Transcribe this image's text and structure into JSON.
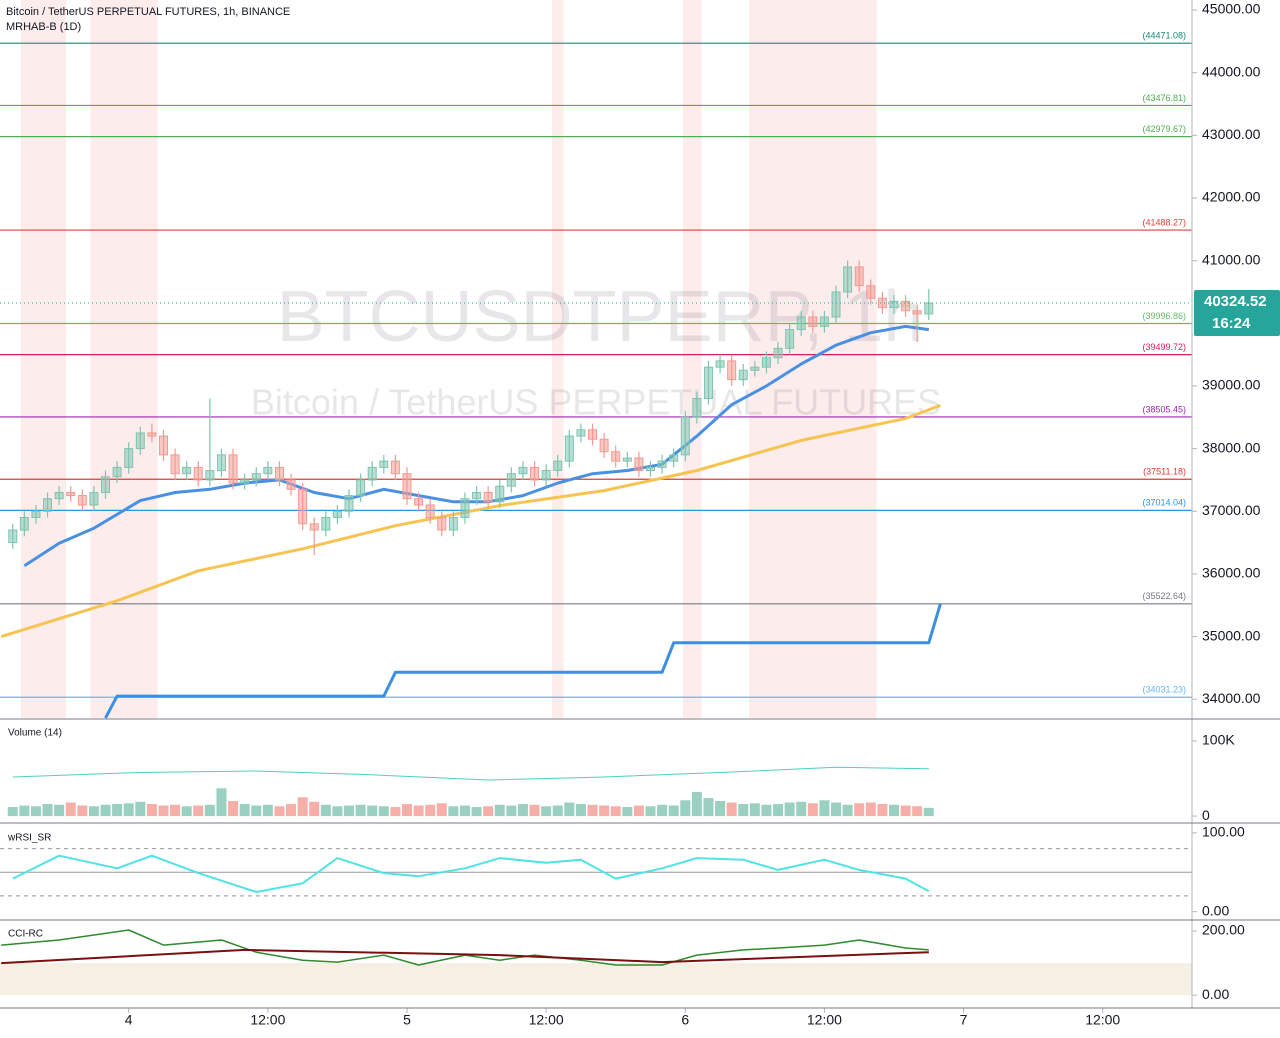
{
  "chart_data": [
    {
      "type": "candlestick",
      "title": "Bitcoin / TetherUS PERPETUAL FUTURES, 1h, BINANCE",
      "indicator": "MRHAB-B (1D)",
      "watermark": "BTCUSDTPERP, 1h",
      "watermark_subtitle": "Bitcoin / TetherUS PERPETUAL FUTURES",
      "price_label": {
        "value": 40324.52,
        "label": "40324.52"
      },
      "countdown": "16:24",
      "xlim": [
        12.9,
        115.7
      ],
      "xticks": [
        {
          "value": 24,
          "label": "4"
        },
        {
          "value": 36,
          "label": "12:00"
        },
        {
          "value": 48,
          "label": "5"
        },
        {
          "value": 60,
          "label": "12:00"
        },
        {
          "value": 72,
          "label": "6"
        },
        {
          "value": 84,
          "label": "12:00"
        },
        {
          "value": 96,
          "label": "7"
        },
        {
          "value": 108,
          "label": "12:00"
        }
      ],
      "ylim": [
        33700,
        45160
      ],
      "yticks": [
        {
          "value": 45000,
          "label": "45000.00"
        },
        {
          "value": 44000,
          "label": "44000.00"
        },
        {
          "value": 43000,
          "label": "43000.00"
        },
        {
          "value": 42000,
          "label": "42000.00"
        },
        {
          "value": 41000,
          "label": "41000.00"
        },
        {
          "value": 39000,
          "label": "39000.00"
        },
        {
          "value": 38000,
          "label": "38000.00"
        },
        {
          "value": 37000,
          "label": "37000.00"
        },
        {
          "value": 36000,
          "label": "36000.00"
        },
        {
          "value": 35000,
          "label": "35000.00"
        },
        {
          "value": 34000,
          "label": "34000.00"
        }
      ],
      "up_color": "#7fc4b0",
      "down_color": "#f29a92",
      "x": [
        14,
        15,
        16,
        17,
        18,
        19,
        20,
        21,
        22,
        23,
        24,
        25,
        26,
        27,
        28,
        29,
        30,
        31,
        32,
        33,
        34,
        35,
        36,
        37,
        38,
        39,
        40,
        41,
        42,
        43,
        44,
        45,
        46,
        47,
        48,
        49,
        50,
        51,
        52,
        53,
        54,
        55,
        56,
        57,
        58,
        59,
        60,
        61,
        62,
        63,
        64,
        65,
        66,
        67,
        68,
        69,
        70,
        71,
        72,
        73,
        74,
        75,
        76,
        77,
        78,
        79,
        80,
        81,
        82,
        83,
        84,
        85,
        86,
        87,
        88,
        89,
        90,
        91,
        92,
        93
      ],
      "open": [
        36500,
        36700,
        36900,
        37000,
        37200,
        37300,
        37250,
        37100,
        37300,
        37550,
        37700,
        38000,
        38250,
        38200,
        37900,
        37600,
        37700,
        37500,
        37650,
        37900,
        37450,
        37500,
        37600,
        37700,
        37500,
        37350,
        36800,
        36700,
        36900,
        37000,
        37250,
        37500,
        37700,
        37800,
        37600,
        37200,
        37100,
        36900,
        36700,
        36900,
        37200,
        37300,
        37150,
        37400,
        37600,
        37700,
        37500,
        37650,
        37800,
        38200,
        38300,
        38150,
        37950,
        37800,
        37850,
        37650,
        37700,
        37800,
        37900,
        38500,
        38800,
        39300,
        39400,
        39100,
        39250,
        39300,
        39450,
        39600,
        39900,
        40100,
        39950,
        40100,
        40500,
        40900,
        40600,
        40400,
        40250,
        40350,
        40200,
        40150
      ],
      "high": [
        36800,
        37000,
        37100,
        37300,
        37400,
        37400,
        37350,
        37400,
        37650,
        37800,
        38100,
        38350,
        38400,
        38300,
        38000,
        37800,
        37800,
        38800,
        38000,
        38000,
        37600,
        37700,
        37800,
        37800,
        37600,
        37450,
        36900,
        37000,
        37100,
        37350,
        37600,
        37800,
        37900,
        37900,
        37700,
        37300,
        37200,
        37000,
        37000,
        37300,
        37400,
        37400,
        37500,
        37700,
        37800,
        37800,
        37750,
        37900,
        38300,
        38400,
        38400,
        38250,
        38050,
        37950,
        37950,
        37800,
        37900,
        38000,
        38600,
        38900,
        39400,
        39500,
        39500,
        39350,
        39400,
        39550,
        39700,
        40000,
        40200,
        40200,
        40200,
        40600,
        41000,
        41000,
        40700,
        40500,
        40450,
        40450,
        40300,
        40550
      ],
      "low": [
        36400,
        36600,
        36800,
        36900,
        37100,
        37150,
        37000,
        37000,
        37200,
        37450,
        37600,
        37900,
        38100,
        37800,
        37500,
        37500,
        37400,
        37400,
        37550,
        37350,
        37350,
        37400,
        37500,
        37400,
        37250,
        36700,
        36300,
        36600,
        36800,
        36900,
        37150,
        37400,
        37600,
        37500,
        37100,
        37000,
        36800,
        36600,
        36600,
        36800,
        37100,
        37050,
        37050,
        37300,
        37500,
        37400,
        37400,
        37550,
        37700,
        38100,
        38050,
        37850,
        37700,
        37700,
        37550,
        37550,
        37600,
        37700,
        37800,
        38400,
        38700,
        39200,
        39000,
        39000,
        39150,
        39200,
        39350,
        39500,
        39800,
        39850,
        39850,
        40000,
        40400,
        40500,
        40300,
        40150,
        40150,
        40100,
        39700,
        40050
      ],
      "close": [
        36700,
        36900,
        37000,
        37200,
        37300,
        37250,
        37100,
        37300,
        37550,
        37700,
        38000,
        38250,
        38200,
        37900,
        37600,
        37700,
        37500,
        37650,
        37900,
        37450,
        37500,
        37600,
        37700,
        37500,
        37350,
        36800,
        36700,
        36900,
        37000,
        37250,
        37500,
        37700,
        37800,
        37600,
        37200,
        37100,
        36900,
        36700,
        36900,
        37200,
        37300,
        37150,
        37400,
        37600,
        37700,
        37500,
        37650,
        37800,
        38200,
        38300,
        38150,
        37950,
        37800,
        37850,
        37650,
        37700,
        37800,
        37900,
        38500,
        38800,
        39300,
        39400,
        39100,
        39250,
        39300,
        39450,
        39600,
        39900,
        40100,
        39950,
        40100,
        40500,
        40900,
        40600,
        40400,
        40250,
        40350,
        40200,
        40150,
        40324.52
      ],
      "levels": [
        {
          "value": 44471.08,
          "label": "(44471.08)",
          "color": "#1b8a7a"
        },
        {
          "value": 43476.81,
          "label": "(43476.81)",
          "color": "#4caf50"
        },
        {
          "value": 42979.67,
          "label": "(42979.67)",
          "color": "#4caf50"
        },
        {
          "value": 41488.27,
          "label": "(41488.27)",
          "color": "#e0403a"
        },
        {
          "value": 39996.86,
          "label": "(39996.86)",
          "color": "#66bb6a"
        },
        {
          "value": 39499.72,
          "label": "(39499.72)",
          "color": "#d81b60"
        },
        {
          "value": 38505.45,
          "label": "(38505.45)",
          "color": "#9c27b0"
        },
        {
          "value": 37511.18,
          "label": "(37511.18)",
          "color": "#e53935"
        },
        {
          "value": 37014.04,
          "label": "(37014.04)",
          "color": "#2196f3"
        },
        {
          "value": 35522.64,
          "label": "(35522.64)",
          "color": "#787b86"
        },
        {
          "value": 34031.23,
          "label": "(34031.23)",
          "color": "#64b5f6"
        }
      ],
      "highlight_ranges": [
        [
          14.7,
          18.6
        ],
        [
          20.7,
          26.5
        ],
        [
          60.5,
          61.5
        ],
        [
          71.8,
          73.4
        ],
        [
          77.5,
          88.5
        ]
      ],
      "highlight_color": "#fdecec",
      "series": [
        {
          "color": "#4a90e2",
          "width": 3,
          "x": [
            15,
            18,
            21,
            25,
            28,
            31,
            34,
            37,
            40,
            43,
            46,
            49,
            52,
            55,
            58,
            61,
            64,
            67,
            70,
            73,
            76,
            79,
            82,
            85,
            88,
            91,
            93
          ],
          "values": [
            36130,
            36490,
            36730,
            37170,
            37300,
            37350,
            37450,
            37500,
            37300,
            37200,
            37350,
            37250,
            37150,
            37150,
            37250,
            37450,
            37600,
            37650,
            37750,
            38200,
            38700,
            39000,
            39350,
            39650,
            39850,
            39950,
            39900
          ]
        },
        {
          "color": "#f6c453",
          "width": 3,
          "x": [
            13,
            23,
            30,
            39,
            47,
            56,
            65,
            73,
            82,
            91,
            94
          ],
          "values": [
            35000,
            35570,
            36050,
            36400,
            36770,
            37090,
            37330,
            37650,
            38130,
            38480,
            38690
          ]
        },
        {
          "color": "#3d8fe0",
          "width": 3,
          "x": [
            22,
            23,
            46,
            47,
            70,
            71,
            93,
            94
          ],
          "values": [
            33700,
            34050,
            34050,
            34430,
            34430,
            34900,
            34900,
            35522.64
          ]
        }
      ]
    },
    {
      "type": "bar",
      "label": "Volume (14)",
      "ylim": [
        -2600,
        128000
      ],
      "yticks": [
        {
          "value": 100000,
          "label": "100K"
        },
        0
      ],
      "x": [
        14,
        15,
        16,
        17,
        18,
        19,
        20,
        21,
        22,
        23,
        24,
        25,
        26,
        27,
        28,
        29,
        30,
        31,
        32,
        33,
        34,
        35,
        36,
        37,
        38,
        39,
        40,
        41,
        42,
        43,
        44,
        45,
        46,
        47,
        48,
        49,
        50,
        51,
        52,
        53,
        54,
        55,
        56,
        57,
        58,
        59,
        60,
        61,
        62,
        63,
        64,
        65,
        66,
        67,
        68,
        69,
        70,
        71,
        72,
        73,
        74,
        75,
        76,
        77,
        78,
        79,
        80,
        81,
        82,
        83,
        84,
        85,
        86,
        87,
        88,
        89,
        90,
        91,
        92,
        93
      ],
      "values": [
        12000,
        14000,
        13000,
        16000,
        15000,
        18000,
        14000,
        13000,
        15000,
        16000,
        17000,
        19000,
        16000,
        14000,
        15000,
        13000,
        14000,
        15000,
        37000,
        20000,
        16000,
        14000,
        15000,
        13000,
        16000,
        25000,
        19000,
        15000,
        13000,
        14000,
        15000,
        14000,
        13000,
        12000,
        16000,
        14000,
        15000,
        17000,
        13000,
        14000,
        12000,
        13000,
        15000,
        14000,
        16000,
        15000,
        13000,
        14000,
        18000,
        16000,
        15000,
        14000,
        13000,
        12000,
        14000,
        13000,
        15000,
        14000,
        21000,
        32000,
        24000,
        20000,
        18000,
        16000,
        17000,
        15000,
        16000,
        18000,
        19000,
        17000,
        21000,
        18000,
        15000,
        17000,
        18000,
        16000,
        15000,
        14000,
        13000,
        11000
      ],
      "series": [
        {
          "color": "#4dd0c0",
          "width": 1,
          "x": [
            14,
            25,
            35,
            45,
            55,
            65,
            75,
            85,
            93
          ],
          "values": [
            52000,
            58000,
            60000,
            55000,
            48000,
            52000,
            58000,
            65000,
            63000
          ]
        }
      ]
    },
    {
      "type": "line",
      "label": "wRSI_SR",
      "ylim": [
        -8,
        110
      ],
      "yticks": [
        {
          "value": 100,
          "label": "100.00"
        },
        {
          "value": 0,
          "label": "0.00"
        }
      ],
      "levels": [
        {
          "value": 80,
          "dashed": true
        },
        {
          "value": 50,
          "dashed": false
        },
        {
          "value": 20,
          "dashed": true
        }
      ],
      "series": [
        {
          "color": "#4fe3e3",
          "width": 2,
          "x": [
            14,
            18,
            23,
            26,
            30,
            35,
            39,
            42,
            46,
            49,
            53,
            56,
            60,
            63,
            66,
            70,
            73,
            77,
            80,
            84,
            87,
            91,
            93
          ],
          "values": [
            42,
            71,
            55,
            71,
            49,
            25,
            36,
            68,
            49,
            45,
            55,
            68,
            62,
            66,
            42,
            55,
            68,
            66,
            53,
            66,
            53,
            42,
            26
          ]
        }
      ]
    },
    {
      "type": "line",
      "label": "CCI-RC",
      "ylim": [
        -40,
        228
      ],
      "yticks": [
        {
          "value": 200,
          "label": "200.00"
        },
        {
          "value": 0,
          "label": "0.00"
        }
      ],
      "band": [
        0,
        100
      ],
      "series": [
        {
          "color": "#2e8b2e",
          "width": 1.5,
          "x": [
            13,
            18,
            24,
            27,
            32,
            35,
            39,
            42,
            46,
            49,
            53,
            56,
            59,
            63,
            66,
            70,
            73,
            77,
            80,
            84,
            87,
            91,
            93
          ],
          "values": [
            156,
            172,
            203,
            156,
            172,
            134,
            109,
            103,
            125,
            94,
            125,
            109,
            125,
            109,
            94,
            94,
            125,
            141,
            147,
            156,
            172,
            147,
            141
          ]
        },
        {
          "color": "#7a0f0f",
          "width": 2,
          "x": [
            13,
            34,
            56,
            70,
            93
          ],
          "values": [
            100,
            141,
            125,
            103,
            134
          ]
        }
      ]
    }
  ]
}
